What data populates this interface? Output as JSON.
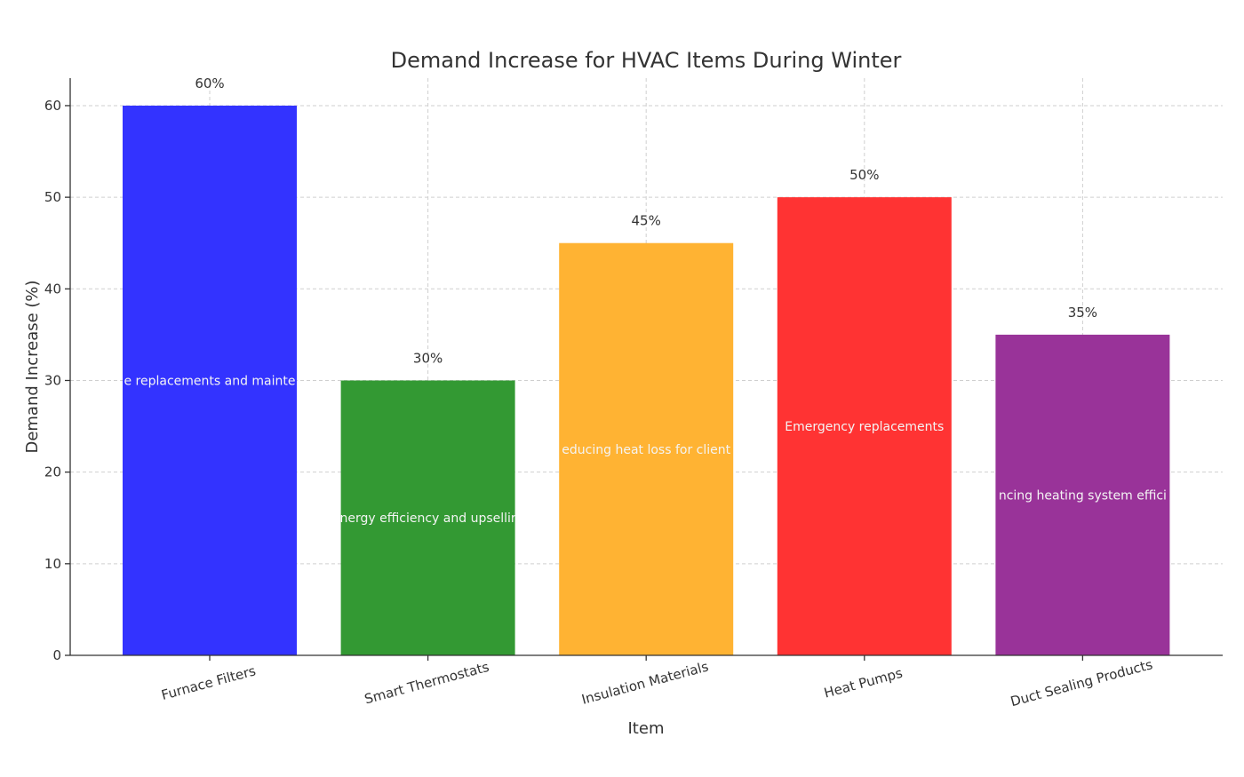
{
  "chart_data": {
    "type": "bar",
    "title": "Demand Increase for HVAC Items During Winter",
    "xlabel": "Item",
    "ylabel": "Demand Increase (%)",
    "ylim": [
      0,
      63
    ],
    "yticks": [
      0,
      10,
      20,
      30,
      40,
      50,
      60
    ],
    "grid": true,
    "categories": [
      "Furnace Filters",
      "Smart Thermostats",
      "Insulation Materials",
      "Heat Pumps",
      "Duct Sealing Products"
    ],
    "values": [
      60,
      30,
      45,
      50,
      35
    ],
    "value_labels": [
      "60%",
      "30%",
      "45%",
      "50%",
      "35%"
    ],
    "annotations": [
      "e replacements and mainte",
      "nergy efficiency and upsellir",
      "educing heat loss for client",
      "Emergency replacements",
      "ncing heating system effici"
    ],
    "colors": [
      "#3333ff",
      "#339933",
      "#ffb333",
      "#ff3333",
      "#993399"
    ]
  }
}
